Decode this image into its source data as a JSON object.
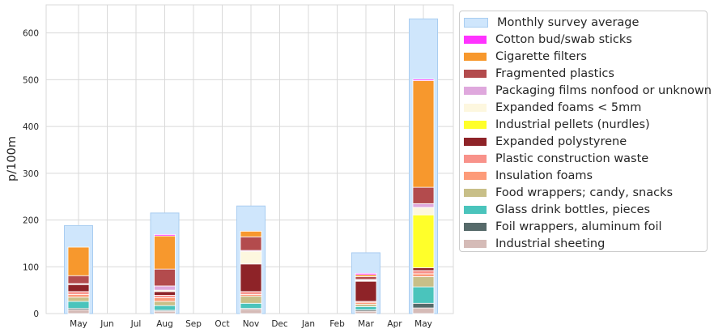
{
  "chart_data": {
    "type": "bar",
    "title": "",
    "xlabel": "",
    "ylabel": "p/100m",
    "ylim": [
      0,
      660
    ],
    "yticks": [
      0,
      100,
      200,
      300,
      400,
      500,
      600
    ],
    "categories": [
      "May",
      "Jun",
      "Jul",
      "Aug",
      "Sep",
      "Oct",
      "Nov",
      "Dec",
      "Jan",
      "Feb",
      "Mar",
      "Apr",
      "May"
    ],
    "grid": true,
    "legend_position": "outside-right",
    "background_series": {
      "name": "Monthly survey average",
      "color": "#cfe6fc",
      "edge_color": "#a9cdf1",
      "values": [
        188,
        0,
        0,
        215,
        0,
        0,
        230,
        0,
        0,
        0,
        130,
        0,
        630
      ]
    },
    "series": [
      {
        "name": "Cotton bud/swab sticks",
        "color": "#ff33ff",
        "values": [
          0,
          null,
          null,
          3,
          null,
          null,
          0,
          null,
          null,
          null,
          3,
          null,
          3
        ]
      },
      {
        "name": "Cigarette filters",
        "color": "#f7982d",
        "values": [
          61,
          null,
          null,
          71,
          null,
          null,
          12,
          null,
          null,
          null,
          4,
          null,
          228
        ]
      },
      {
        "name": "Fragmented plastics",
        "color": "#b34b4d",
        "values": [
          17,
          null,
          null,
          36,
          null,
          null,
          29,
          null,
          null,
          null,
          6,
          null,
          35
        ]
      },
      {
        "name": "Packaging films nonfood or unknown",
        "color": "#dfa8dd",
        "values": [
          1,
          null,
          null,
          9,
          null,
          null,
          2,
          null,
          null,
          null,
          2,
          null,
          8
        ]
      },
      {
        "name": "Expanded foams < 5mm",
        "color": "#fdf7df",
        "values": [
          1,
          null,
          null,
          3,
          null,
          null,
          27,
          null,
          null,
          null,
          2,
          null,
          16
        ]
      },
      {
        "name": "Industrial pellets (nurdles)",
        "color": "#ffff2a",
        "values": [
          0,
          null,
          null,
          0,
          null,
          null,
          0,
          null,
          null,
          null,
          0,
          null,
          113
        ]
      },
      {
        "name": "Expanded polystyrene",
        "color": "#8e2328",
        "values": [
          15,
          null,
          null,
          8,
          null,
          null,
          59,
          null,
          null,
          null,
          43,
          null,
          6
        ]
      },
      {
        "name": "Plastic construction waste",
        "color": "#f8928a",
        "values": [
          6,
          null,
          null,
          5,
          null,
          null,
          6,
          null,
          null,
          null,
          2,
          null,
          7
        ]
      },
      {
        "name": "Insulation foams",
        "color": "#fd9b79",
        "values": [
          6,
          null,
          null,
          8,
          null,
          null,
          4,
          null,
          null,
          null,
          4,
          null,
          6
        ]
      },
      {
        "name": "Food wrappers; candy, snacks",
        "color": "#c8bf88",
        "values": [
          9,
          null,
          null,
          9,
          null,
          null,
          15,
          null,
          null,
          null,
          5,
          null,
          22
        ]
      },
      {
        "name": "Glass drink bottles, pieces",
        "color": "#4ac4bc",
        "values": [
          15,
          null,
          null,
          10,
          null,
          null,
          11,
          null,
          null,
          null,
          7,
          null,
          35
        ]
      },
      {
        "name": "Foil wrappers, aluminum foil",
        "color": "#566a6a",
        "values": [
          3,
          null,
          null,
          2,
          null,
          null,
          2,
          null,
          null,
          null,
          3,
          null,
          10
        ]
      },
      {
        "name": "Industrial sheeting",
        "color": "#d5bbb7",
        "values": [
          8,
          null,
          null,
          5,
          null,
          null,
          9,
          null,
          null,
          null,
          5,
          null,
          12
        ]
      }
    ]
  }
}
